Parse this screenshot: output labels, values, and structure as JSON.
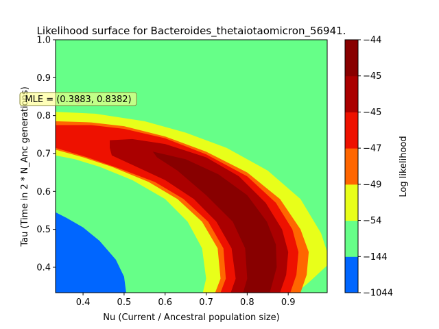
{
  "chart_data": {
    "type": "contour",
    "title": "Likelihood surface for Bacteroides_thetaiotaomicron_56941.",
    "xlabel": "Nu (Current / Ancestral population size)",
    "ylabel": "Tau (Time in 2 * N_Anc generations)",
    "xlim": [
      0.333,
      0.995
    ],
    "ylim": [
      0.333,
      1.0
    ],
    "x_ticks": [
      0.4,
      0.5,
      0.6,
      0.7,
      0.8,
      0.9
    ],
    "x_tick_labels": [
      "0.4",
      "0.5",
      "0.6",
      "0.7",
      "0.8",
      "0.9"
    ],
    "y_ticks": [
      0.4,
      0.5,
      0.6,
      0.7,
      0.8,
      0.9,
      1.0
    ],
    "y_tick_labels": [
      "0.4",
      "0.5",
      "0.6",
      "0.7",
      "0.8",
      "0.9",
      "1.0"
    ],
    "colorbar": {
      "label": "Log likelihood",
      "tick_labels": [
        "−1044",
        "−144",
        "−54",
        "−49",
        "−47",
        "−45",
        "−45",
        "−44"
      ],
      "level_colors": [
        "#0066ff",
        "#66ff88",
        "#e8ff1a",
        "#ff6600",
        "#ee1100",
        "#aa0000",
        "#880000"
      ]
    },
    "regions": [
      {
        "level": 0,
        "color": "#0066ff",
        "polygon": [
          [
            0.333,
            0.545
          ],
          [
            0.36,
            0.53
          ],
          [
            0.4,
            0.505
          ],
          [
            0.44,
            0.47
          ],
          [
            0.48,
            0.42
          ],
          [
            0.5,
            0.375
          ],
          [
            0.505,
            0.333
          ],
          [
            0.333,
            0.333
          ]
        ]
      },
      {
        "level": 2,
        "color": "#e8ff1a",
        "polygon": [
          [
            0.333,
            0.81
          ],
          [
            0.43,
            0.805
          ],
          [
            0.55,
            0.785
          ],
          [
            0.65,
            0.755
          ],
          [
            0.75,
            0.715
          ],
          [
            0.85,
            0.655
          ],
          [
            0.93,
            0.58
          ],
          [
            0.98,
            0.49
          ],
          [
            0.995,
            0.44
          ],
          [
            0.995,
            0.405
          ],
          [
            0.985,
            0.395
          ],
          [
            0.95,
            0.36
          ],
          [
            0.92,
            0.333
          ],
          [
            0.692,
            0.333
          ],
          [
            0.7,
            0.37
          ],
          [
            0.69,
            0.45
          ],
          [
            0.655,
            0.52
          ],
          [
            0.6,
            0.58
          ],
          [
            0.52,
            0.63
          ],
          [
            0.44,
            0.665
          ],
          [
            0.38,
            0.685
          ],
          [
            0.333,
            0.695
          ]
        ]
      },
      {
        "level": 3,
        "color": "#ff6600",
        "polygon": [
          [
            0.333,
            0.785
          ],
          [
            0.42,
            0.782
          ],
          [
            0.5,
            0.772
          ],
          [
            0.6,
            0.745
          ],
          [
            0.7,
            0.705
          ],
          [
            0.8,
            0.65
          ],
          [
            0.88,
            0.58
          ],
          [
            0.93,
            0.5
          ],
          [
            0.95,
            0.44
          ],
          [
            0.945,
            0.38
          ],
          [
            0.93,
            0.333
          ],
          [
            0.722,
            0.333
          ],
          [
            0.735,
            0.37
          ],
          [
            0.728,
            0.45
          ],
          [
            0.69,
            0.52
          ],
          [
            0.63,
            0.58
          ],
          [
            0.56,
            0.625
          ],
          [
            0.47,
            0.665
          ],
          [
            0.4,
            0.69
          ],
          [
            0.333,
            0.71
          ]
        ]
      },
      {
        "level": 4,
        "color": "#ee1100",
        "polygon": [
          [
            0.333,
            0.775
          ],
          [
            0.42,
            0.775
          ],
          [
            0.5,
            0.765
          ],
          [
            0.6,
            0.74
          ],
          [
            0.7,
            0.698
          ],
          [
            0.8,
            0.64
          ],
          [
            0.87,
            0.57
          ],
          [
            0.91,
            0.5
          ],
          [
            0.925,
            0.44
          ],
          [
            0.92,
            0.38
          ],
          [
            0.905,
            0.333
          ],
          [
            0.735,
            0.333
          ],
          [
            0.748,
            0.37
          ],
          [
            0.742,
            0.45
          ],
          [
            0.705,
            0.52
          ],
          [
            0.645,
            0.58
          ],
          [
            0.575,
            0.625
          ],
          [
            0.49,
            0.66
          ],
          [
            0.41,
            0.69
          ],
          [
            0.333,
            0.715
          ]
        ]
      },
      {
        "level": 5,
        "color": "#aa0000",
        "polygon": [
          [
            0.465,
            0.735
          ],
          [
            0.52,
            0.738
          ],
          [
            0.6,
            0.725
          ],
          [
            0.7,
            0.69
          ],
          [
            0.78,
            0.64
          ],
          [
            0.845,
            0.57
          ],
          [
            0.885,
            0.5
          ],
          [
            0.9,
            0.44
          ],
          [
            0.895,
            0.38
          ],
          [
            0.88,
            0.333
          ],
          [
            0.76,
            0.333
          ],
          [
            0.772,
            0.37
          ],
          [
            0.762,
            0.45
          ],
          [
            0.725,
            0.52
          ],
          [
            0.67,
            0.58
          ],
          [
            0.6,
            0.63
          ],
          [
            0.53,
            0.665
          ],
          [
            0.47,
            0.695
          ],
          [
            0.465,
            0.715
          ]
        ]
      },
      {
        "level": 6,
        "color": "#880000",
        "polygon": [
          [
            0.57,
            0.705
          ],
          [
            0.65,
            0.685
          ],
          [
            0.73,
            0.645
          ],
          [
            0.8,
            0.59
          ],
          [
            0.848,
            0.52
          ],
          [
            0.87,
            0.46
          ],
          [
            0.872,
            0.4
          ],
          [
            0.862,
            0.36
          ],
          [
            0.855,
            0.333
          ],
          [
            0.79,
            0.333
          ],
          [
            0.8,
            0.37
          ],
          [
            0.795,
            0.45
          ],
          [
            0.765,
            0.52
          ],
          [
            0.7,
            0.59
          ],
          [
            0.63,
            0.655
          ],
          [
            0.58,
            0.69
          ]
        ]
      }
    ],
    "annotation": {
      "text": "MLE = (0.3883, 0.8382)",
      "point": [
        0.3883,
        0.8382
      ]
    }
  }
}
